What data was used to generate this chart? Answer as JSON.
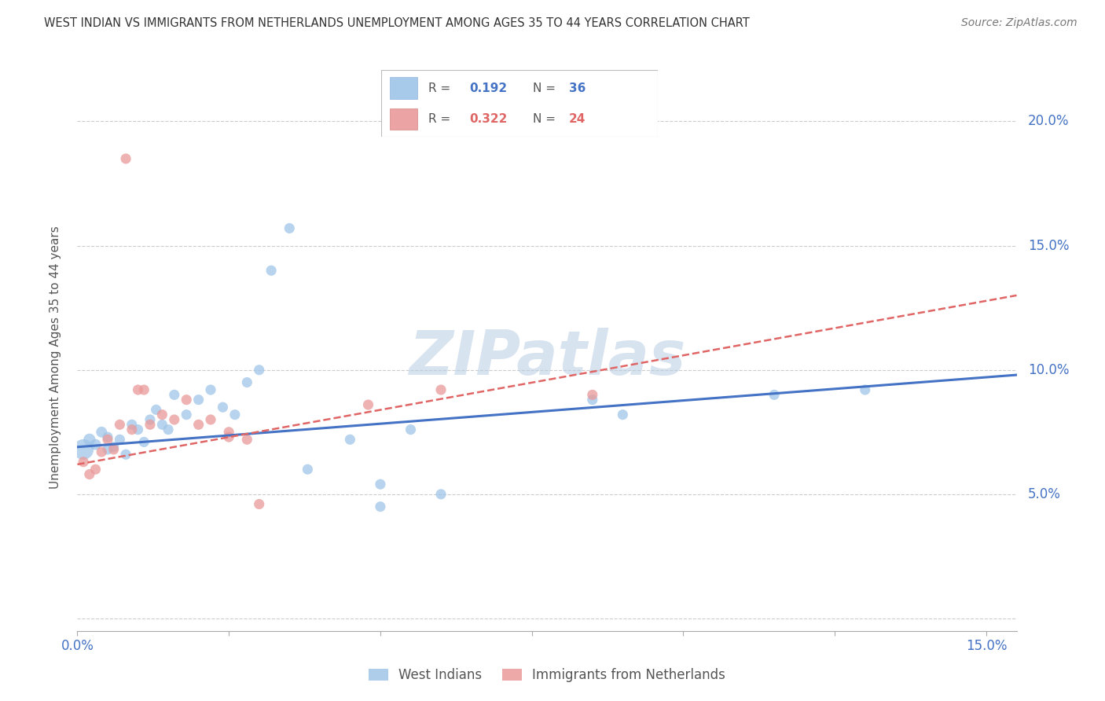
{
  "title": "WEST INDIAN VS IMMIGRANTS FROM NETHERLANDS UNEMPLOYMENT AMONG AGES 35 TO 44 YEARS CORRELATION CHART",
  "source": "Source: ZipAtlas.com",
  "ylabel": "Unemployment Among Ages 35 to 44 years",
  "watermark": "ZIPatlas",
  "xlim": [
    0.0,
    0.155
  ],
  "ylim": [
    -0.005,
    0.215
  ],
  "ytick_positions": [
    0.0,
    0.05,
    0.1,
    0.15,
    0.2
  ],
  "ytick_labels": [
    "",
    "5.0%",
    "10.0%",
    "15.0%",
    "20.0%"
  ],
  "xtick_positions": [
    0.0,
    0.025,
    0.05,
    0.075,
    0.1,
    0.125,
    0.15
  ],
  "xtick_labels": [
    "0.0%",
    "",
    "",
    "",
    "",
    "",
    "15.0%"
  ],
  "blue_color": "#9fc5e8",
  "pink_color": "#ea9999",
  "trend_blue": "#4472c4",
  "trend_pink": "#e06666",
  "label_blue": "West Indians",
  "label_pink": "Immigrants from Netherlands",
  "R_blue": "0.192",
  "N_blue": "36",
  "R_pink": "0.322",
  "N_pink": "24",
  "blue_x": [
    0.001,
    0.002,
    0.003,
    0.004,
    0.005,
    0.005,
    0.006,
    0.007,
    0.008,
    0.009,
    0.01,
    0.011,
    0.012,
    0.013,
    0.014,
    0.015,
    0.016,
    0.018,
    0.02,
    0.022,
    0.024,
    0.026,
    0.028,
    0.03,
    0.032,
    0.035,
    0.038,
    0.045,
    0.05,
    0.05,
    0.055,
    0.06,
    0.085,
    0.09,
    0.115,
    0.13
  ],
  "blue_y": [
    0.068,
    0.072,
    0.07,
    0.075,
    0.068,
    0.073,
    0.069,
    0.072,
    0.066,
    0.078,
    0.076,
    0.071,
    0.08,
    0.084,
    0.078,
    0.076,
    0.09,
    0.082,
    0.088,
    0.092,
    0.085,
    0.082,
    0.095,
    0.1,
    0.14,
    0.157,
    0.06,
    0.072,
    0.054,
    0.045,
    0.076,
    0.05,
    0.088,
    0.082,
    0.09,
    0.092
  ],
  "blue_sizes": [
    350,
    120,
    100,
    100,
    90,
    90,
    90,
    90,
    90,
    90,
    90,
    90,
    90,
    90,
    90,
    90,
    90,
    90,
    90,
    90,
    90,
    90,
    90,
    90,
    90,
    90,
    90,
    90,
    90,
    90,
    90,
    90,
    90,
    90,
    90,
    90
  ],
  "pink_x": [
    0.001,
    0.002,
    0.003,
    0.004,
    0.005,
    0.006,
    0.007,
    0.008,
    0.009,
    0.01,
    0.011,
    0.012,
    0.014,
    0.016,
    0.018,
    0.02,
    0.022,
    0.025,
    0.025,
    0.028,
    0.03,
    0.048,
    0.06,
    0.085
  ],
  "pink_y": [
    0.063,
    0.058,
    0.06,
    0.067,
    0.072,
    0.068,
    0.078,
    0.185,
    0.076,
    0.092,
    0.092,
    0.078,
    0.082,
    0.08,
    0.088,
    0.078,
    0.08,
    0.073,
    0.075,
    0.072,
    0.046,
    0.086,
    0.092,
    0.09
  ],
  "pink_sizes": [
    90,
    90,
    90,
    90,
    90,
    90,
    90,
    90,
    90,
    90,
    90,
    90,
    90,
    90,
    90,
    90,
    90,
    90,
    90,
    90,
    90,
    90,
    90,
    90
  ],
  "blue_trend": [
    0.069,
    0.098
  ],
  "pink_trend": [
    0.062,
    0.13
  ],
  "grid_color": "#cccccc",
  "axis_color": "#4472c4",
  "bg_color": "#ffffff",
  "text_color": "#555555"
}
